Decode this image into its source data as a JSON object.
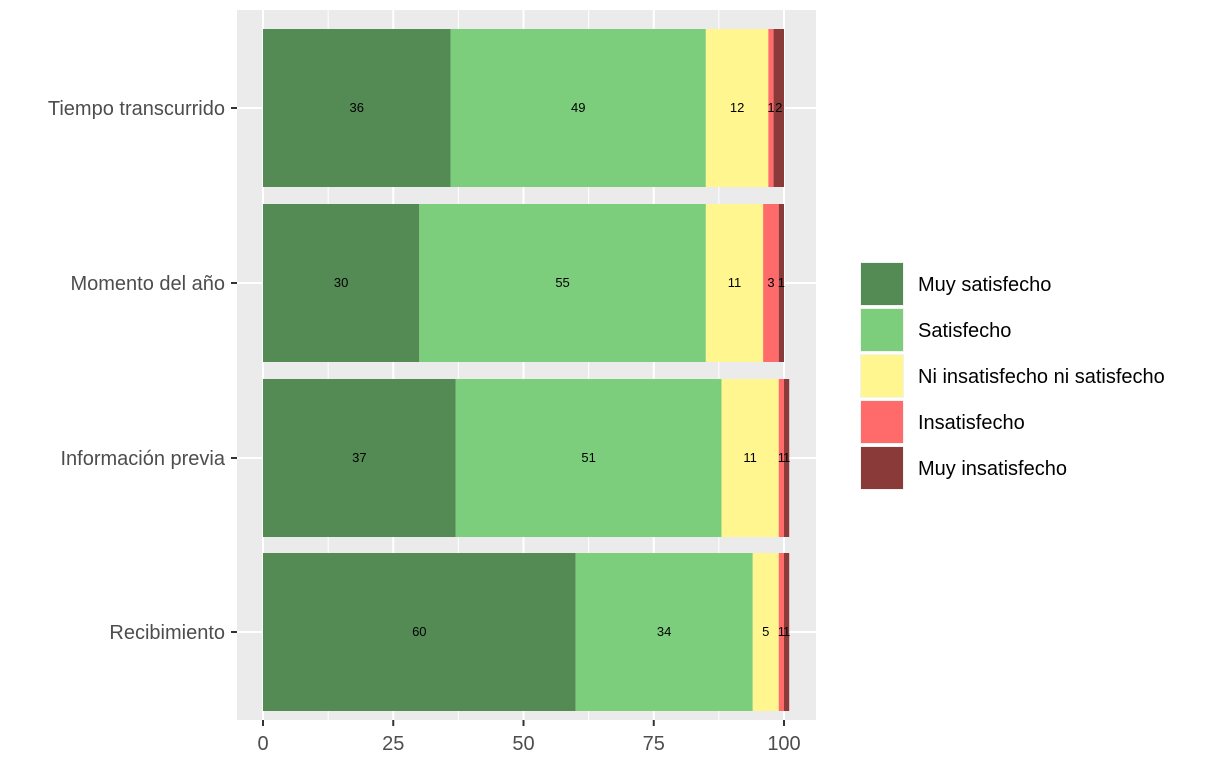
{
  "chart_data": {
    "type": "bar",
    "orientation": "horizontal",
    "stacked": true,
    "title": "",
    "xlabel": "",
    "ylabel": "",
    "xlim": [
      0,
      100
    ],
    "xticks": [
      0,
      25,
      50,
      75,
      100
    ],
    "grid": true,
    "legend_position": "right",
    "categories": [
      "Tiempo transcurrido",
      "Momento del año",
      "Información previa",
      "Recibimiento"
    ],
    "series": [
      {
        "name": "Muy satisfecho",
        "color": "#548b54",
        "values": [
          36,
          30,
          37,
          60
        ],
        "labels": [
          "36",
          "30",
          "37",
          "60"
        ]
      },
      {
        "name": "Satisfecho",
        "color": "#7ccd7c",
        "values": [
          49,
          55,
          51,
          34
        ],
        "labels": [
          "49",
          "55",
          "51",
          "34"
        ]
      },
      {
        "name": "Ni insatisfecho ni satisfecho",
        "color": "#fff68f",
        "values": [
          12,
          11,
          11,
          5
        ],
        "labels": [
          "12",
          "11",
          "11",
          "5"
        ]
      },
      {
        "name": "Insatisfecho",
        "color": "#ff6a6a",
        "values": [
          1,
          3,
          1,
          1
        ],
        "labels": [
          "1",
          "3",
          "1",
          "1"
        ]
      },
      {
        "name": "Muy insatisfecho",
        "color": "#8b3a3a",
        "values": [
          2,
          1,
          1,
          1
        ],
        "labels": [
          "2",
          "1",
          "1",
          "1"
        ]
      }
    ]
  }
}
